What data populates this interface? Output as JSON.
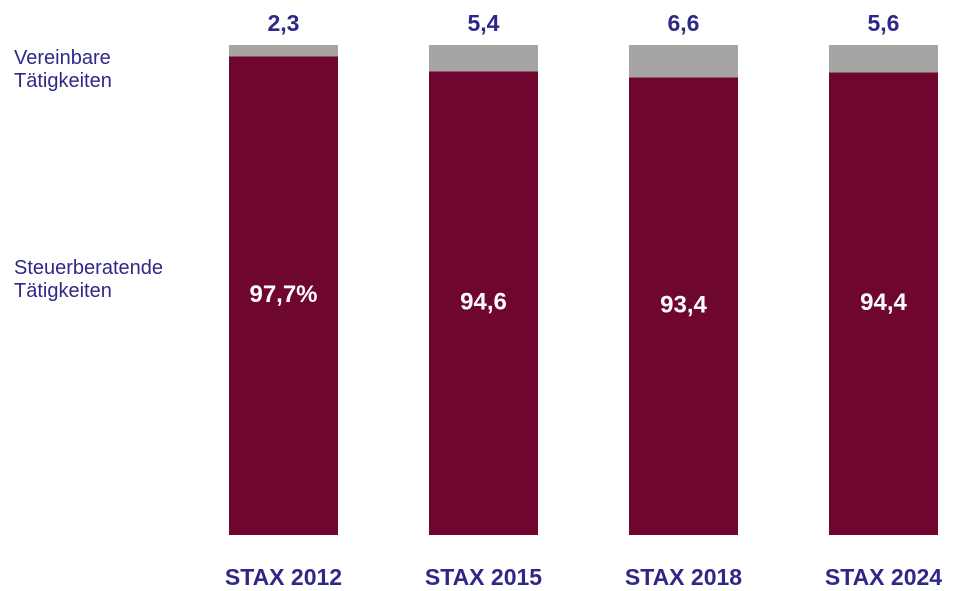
{
  "chart_data": {
    "type": "bar",
    "stacked": true,
    "categories": [
      "STAX 2012",
      "STAX 2015",
      "STAX 2018",
      "STAX 2024"
    ],
    "series": [
      {
        "name": "Steuerberatende Tätigkeiten",
        "color": "#6e0630",
        "values": [
          97.7,
          94.6,
          93.4,
          94.4
        ],
        "value_labels": [
          "97,7%",
          "94,6",
          "93,4",
          "94,4"
        ]
      },
      {
        "name": "Vereinbare Tätigkeiten",
        "color": "#a7a4a4",
        "values": [
          2.3,
          5.4,
          6.6,
          5.6
        ],
        "value_labels": [
          "2,3",
          "5,4",
          "6,6",
          "5,6"
        ]
      }
    ],
    "ylim": [
      0,
      100
    ]
  }
}
